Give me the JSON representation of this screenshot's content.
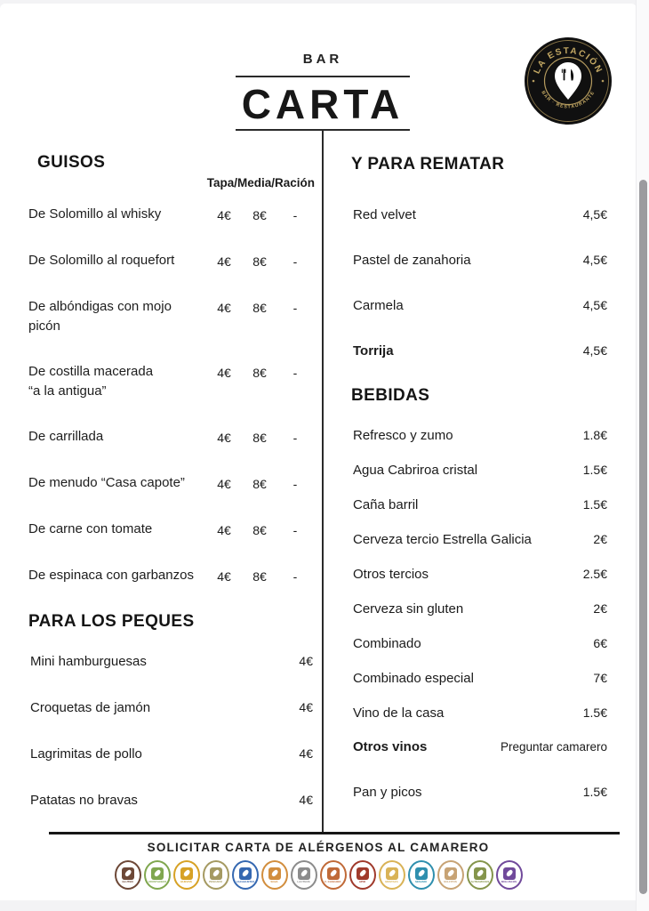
{
  "header": {
    "kicker": "BAR",
    "title": "CARTA",
    "logo": {
      "arc_top": "LA ESTACIÓN",
      "arc_bottom": "BAR · RESTAURANTE"
    }
  },
  "left_column": {
    "guisos": {
      "title": "GUISOS",
      "price_header": "Tapa/Media/Ración",
      "items": [
        {
          "name": "De Solomillo al whisky",
          "prices": [
            "4€",
            "8€",
            "-"
          ]
        },
        {
          "name": "De Solomillo al roquefort",
          "prices": [
            "4€",
            "8€",
            "-"
          ]
        },
        {
          "name": "De albóndigas con mojo\npicón",
          "prices": [
            "4€",
            "8€",
            "-"
          ]
        },
        {
          "name": "De costilla macerada\n“a la antigua”",
          "prices": [
            "4€",
            "8€",
            "-"
          ]
        },
        {
          "name": "De carrillada",
          "prices": [
            "4€",
            "8€",
            "-"
          ]
        },
        {
          "name": "De menudo “Casa capote”",
          "prices": [
            "4€",
            "8€",
            "-"
          ]
        },
        {
          "name": "De carne con tomate",
          "prices": [
            "4€",
            "8€",
            "-"
          ]
        },
        {
          "name": "De espinaca con garbanzos",
          "prices": [
            "4€",
            "8€",
            "-"
          ]
        }
      ]
    },
    "peques": {
      "title": "PARA LOS PEQUES",
      "items": [
        {
          "name": "Mini hamburguesas",
          "price": "4€"
        },
        {
          "name": "Croquetas de jamón",
          "price": "4€"
        },
        {
          "name": "Lagrimitas de pollo",
          "price": "4€"
        },
        {
          "name": "Patatas no bravas",
          "price": "4€"
        }
      ]
    }
  },
  "right_column": {
    "postres": {
      "title": "Y PARA REMATAR",
      "items": [
        {
          "name": "Red velvet",
          "price": "4,5€"
        },
        {
          "name": "Pastel de zanahoria",
          "price": "4,5€"
        },
        {
          "name": "Carmela",
          "price": "4,5€"
        },
        {
          "name": "Torrija",
          "price": "4,5€",
          "bold": true
        }
      ]
    },
    "bebidas": {
      "title": "BEBIDAS",
      "items": [
        {
          "name": "Refresco y zumo",
          "price": "1.8€"
        },
        {
          "name": "Agua Cabriroa cristal",
          "price": "1.5€"
        },
        {
          "name": "Caña barril",
          "price": "1.5€"
        },
        {
          "name": "Cerveza tercio Estrella Galicia",
          "price": "2€"
        },
        {
          "name": "Otros tercios",
          "price": "2.5€"
        },
        {
          "name": "Cerveza sin gluten",
          "price": "2€"
        },
        {
          "name": "Combinado",
          "price": "6€"
        },
        {
          "name": "Combinado especial",
          "price": "7€"
        },
        {
          "name": "Vino de la casa",
          "price": "1.5€"
        },
        {
          "name": "Otros vinos",
          "price": "Preguntar camarero",
          "bold": true,
          "price_small": true
        },
        {
          "name": "Pan y picos",
          "price": "1.5€",
          "gap_before": true
        }
      ]
    }
  },
  "footer": {
    "notice": "SOLICITAR CARTA DE ALÉRGENOS AL CAMARERO",
    "allergens": [
      {
        "name": "gluten",
        "label": "GLUTEN",
        "color": "#6d4837"
      },
      {
        "name": "crustaceos",
        "label": "CRUSTÁCEOS",
        "color": "#80a74f"
      },
      {
        "name": "huevos",
        "label": "HUEVOS",
        "color": "#d7a226"
      },
      {
        "name": "pescado",
        "label": "PESCADO",
        "color": "#a59a62"
      },
      {
        "name": "cacahuetes",
        "label": "CACAHUETES",
        "color": "#3568b1"
      },
      {
        "name": "soja",
        "label": "SOJA",
        "color": "#d28e3e"
      },
      {
        "name": "lacteos",
        "label": "LÁCTEOS",
        "color": "#8c8c8c"
      },
      {
        "name": "frutos-de-cascara",
        "label": "F. CÁSCARA",
        "color": "#c06a38"
      },
      {
        "name": "apio",
        "label": "APIO",
        "color": "#a03a2c"
      },
      {
        "name": "mostaza",
        "label": "MOSTAZA",
        "color": "#d9b357"
      },
      {
        "name": "sesamo",
        "label": "SÉSAMO",
        "color": "#2f8fae"
      },
      {
        "name": "sulfitos",
        "label": "SULFITOS",
        "color": "#c7a375"
      },
      {
        "name": "altramuces",
        "label": "ALTRAMUCES",
        "color": "#85954c"
      },
      {
        "name": "moluscos",
        "label": "MOLUSCOS",
        "color": "#714a9b"
      }
    ]
  }
}
